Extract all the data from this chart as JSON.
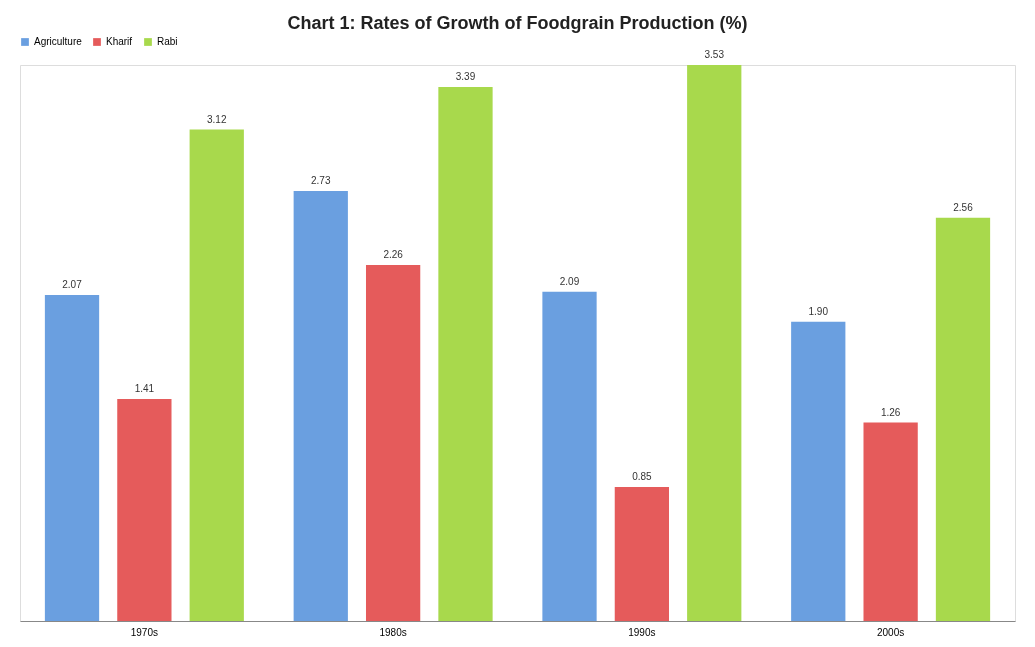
{
  "chart_data": {
    "type": "bar",
    "title": "Chart 1: Rates of Growth of Foodgrain Production (%)",
    "categories": [
      "1970s",
      "1980s",
      "1990s",
      "2000s"
    ],
    "series": [
      {
        "name": "Agriculture",
        "color": "#6a9fe0",
        "values": [
          2.07,
          2.73,
          2.09,
          1.9
        ],
        "value_labels": [
          "2.07",
          "2.73",
          "2.09",
          "1.90"
        ]
      },
      {
        "name": "Kharif",
        "color": "#e55b5b",
        "values": [
          1.41,
          2.26,
          0.85,
          1.26
        ],
        "value_labels": [
          "1.41",
          "2.26",
          "0.85",
          "1.26"
        ]
      },
      {
        "name": "Rabi",
        "color": "#a8d94c",
        "values": [
          3.12,
          3.39,
          3.53,
          2.56
        ],
        "value_labels": [
          "3.12",
          "3.39",
          "3.53",
          "2.56"
        ]
      }
    ],
    "legend": "top",
    "grid": false
  }
}
